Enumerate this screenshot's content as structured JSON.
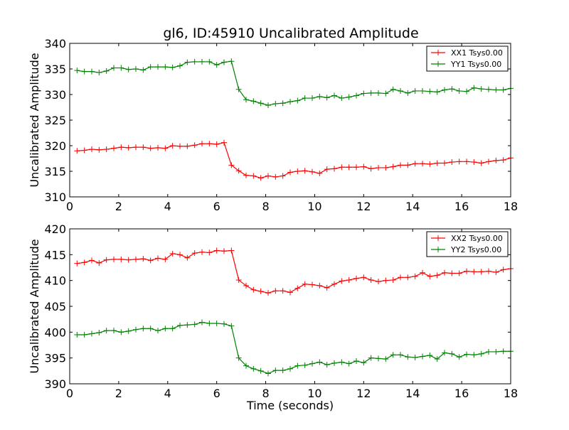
{
  "figure_title": "gl6, ID:45910 Uncalibrated Amplitude",
  "chart_data": [
    {
      "type": "line",
      "title": "gl6, ID:45910 Uncalibrated Amplitude",
      "xlabel": "",
      "ylabel": "Uncalibrated Amplitude",
      "xlim": [
        0,
        18
      ],
      "ylim": [
        310,
        340
      ],
      "xticks": [
        0,
        2,
        4,
        6,
        8,
        10,
        12,
        14,
        16,
        18
      ],
      "yticks": [
        310,
        315,
        320,
        325,
        330,
        335,
        340
      ],
      "grid": false,
      "legend_position": "top-right",
      "x": [
        0.3,
        0.6,
        0.9,
        1.2,
        1.5,
        1.8,
        2.1,
        2.4,
        2.7,
        3.0,
        3.3,
        3.6,
        3.9,
        4.2,
        4.5,
        4.8,
        5.1,
        5.4,
        5.7,
        6.0,
        6.3,
        6.6,
        6.9,
        7.2,
        7.5,
        7.8,
        8.1,
        8.4,
        8.7,
        9.0,
        9.3,
        9.6,
        9.9,
        10.2,
        10.5,
        10.8,
        11.1,
        11.4,
        11.7,
        12.0,
        12.3,
        12.6,
        12.9,
        13.2,
        13.5,
        13.8,
        14.1,
        14.4,
        14.7,
        15.0,
        15.3,
        15.6,
        15.9,
        16.2,
        16.5,
        16.8,
        17.1,
        17.4,
        17.7,
        18.0
      ],
      "series": [
        {
          "name": "XX1 Tsys0.00",
          "color": "#ff0000",
          "values": [
            319.0,
            319.1,
            319.3,
            319.2,
            319.3,
            319.5,
            319.7,
            319.6,
            319.7,
            319.7,
            319.5,
            319.6,
            319.5,
            320.0,
            319.9,
            319.9,
            320.1,
            320.4,
            320.4,
            320.3,
            320.6,
            316.2,
            315.1,
            314.2,
            314.1,
            313.7,
            314.1,
            313.9,
            314.1,
            314.8,
            315.0,
            315.1,
            314.9,
            314.6,
            315.4,
            315.5,
            315.8,
            315.8,
            315.8,
            315.9,
            315.5,
            315.7,
            315.7,
            315.9,
            316.2,
            316.2,
            316.5,
            316.5,
            316.4,
            316.6,
            316.6,
            316.8,
            316.9,
            316.9,
            316.8,
            316.6,
            316.9,
            317.1,
            317.2,
            317.6
          ]
        },
        {
          "name": "YY1 Tsys0.00",
          "color": "#008000",
          "values": [
            334.7,
            334.5,
            334.5,
            334.3,
            334.6,
            335.2,
            335.2,
            334.9,
            335.0,
            334.8,
            335.4,
            335.4,
            335.4,
            335.3,
            335.6,
            336.3,
            336.4,
            336.4,
            336.4,
            335.8,
            336.3,
            336.5,
            331.0,
            329.0,
            328.7,
            328.3,
            327.9,
            328.2,
            328.3,
            328.6,
            328.8,
            329.3,
            329.3,
            329.6,
            329.4,
            329.8,
            329.3,
            329.5,
            329.8,
            330.2,
            330.3,
            330.3,
            330.2,
            331.0,
            330.7,
            330.3,
            330.7,
            330.7,
            330.6,
            330.5,
            330.9,
            331.1,
            330.7,
            330.6,
            331.3,
            331.1,
            331.0,
            330.9,
            330.9,
            331.2
          ]
        }
      ]
    },
    {
      "type": "line",
      "title": "",
      "xlabel": "Time (seconds)",
      "ylabel": "Uncalibrated Amplitude",
      "xlim": [
        0,
        18
      ],
      "ylim": [
        390,
        420
      ],
      "xticks": [
        0,
        2,
        4,
        6,
        8,
        10,
        12,
        14,
        16,
        18
      ],
      "yticks": [
        390,
        395,
        400,
        405,
        410,
        415,
        420
      ],
      "grid": false,
      "legend_position": "top-right",
      "x": [
        0.3,
        0.6,
        0.9,
        1.2,
        1.5,
        1.8,
        2.1,
        2.4,
        2.7,
        3.0,
        3.3,
        3.6,
        3.9,
        4.2,
        4.5,
        4.8,
        5.1,
        5.4,
        5.7,
        6.0,
        6.3,
        6.6,
        6.9,
        7.2,
        7.5,
        7.8,
        8.1,
        8.4,
        8.7,
        9.0,
        9.3,
        9.6,
        9.9,
        10.2,
        10.5,
        10.8,
        11.1,
        11.4,
        11.7,
        12.0,
        12.3,
        12.6,
        12.9,
        13.2,
        13.5,
        13.8,
        14.1,
        14.4,
        14.7,
        15.0,
        15.3,
        15.6,
        15.9,
        16.2,
        16.5,
        16.8,
        17.1,
        17.4,
        17.7,
        18.0
      ],
      "series": [
        {
          "name": "XX2 Tsys0.00",
          "color": "#ff0000",
          "values": [
            413.3,
            413.5,
            413.9,
            413.4,
            414.0,
            414.1,
            414.1,
            414.0,
            414.1,
            414.2,
            413.9,
            414.3,
            414.1,
            415.2,
            415.0,
            414.4,
            415.3,
            415.5,
            415.4,
            415.8,
            415.7,
            415.8,
            410.1,
            409.0,
            408.2,
            407.9,
            407.6,
            408.0,
            408.0,
            407.7,
            408.5,
            409.3,
            409.2,
            409.0,
            408.6,
            409.3,
            409.9,
            410.1,
            410.4,
            410.6,
            410.1,
            409.8,
            410.0,
            410.1,
            410.6,
            410.6,
            410.8,
            411.5,
            410.8,
            411.0,
            411.5,
            411.4,
            411.4,
            411.8,
            411.7,
            411.7,
            411.8,
            411.6,
            412.1,
            412.3
          ]
        },
        {
          "name": "YY2 Tsys0.00",
          "color": "#008000",
          "values": [
            399.5,
            399.5,
            399.7,
            399.9,
            400.3,
            400.3,
            400.0,
            400.2,
            400.5,
            400.7,
            400.7,
            400.3,
            400.7,
            400.7,
            401.3,
            401.4,
            401.5,
            401.9,
            401.7,
            401.7,
            401.6,
            401.2,
            395.0,
            393.5,
            392.9,
            392.5,
            392.0,
            392.6,
            392.6,
            392.9,
            393.5,
            393.6,
            393.9,
            394.2,
            393.7,
            394.0,
            394.2,
            393.9,
            394.4,
            394.1,
            395.0,
            394.9,
            394.8,
            395.6,
            395.6,
            395.2,
            395.1,
            395.3,
            395.5,
            394.8,
            396.0,
            395.8,
            395.2,
            395.7,
            395.6,
            395.8,
            396.2,
            396.2,
            396.3,
            396.3
          ]
        }
      ]
    }
  ]
}
